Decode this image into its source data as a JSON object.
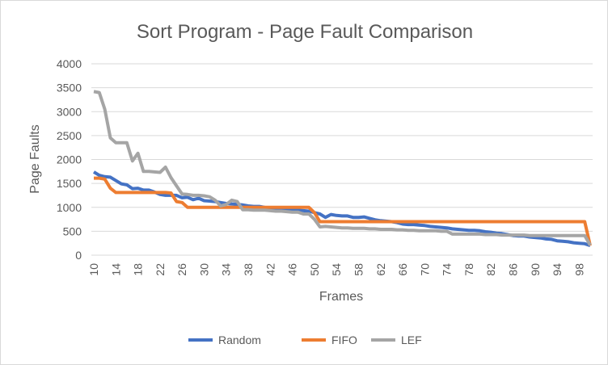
{
  "chart_data": {
    "type": "line",
    "title": "Sort Program - Page Fault Comparison",
    "xlabel": "Frames",
    "ylabel": "Page Faults",
    "xlim": [
      10,
      100
    ],
    "ylim": [
      0,
      4000
    ],
    "y_ticks": [
      0,
      500,
      1000,
      1500,
      2000,
      2500,
      3000,
      3500,
      4000
    ],
    "x_ticks": [
      10,
      14,
      18,
      22,
      26,
      30,
      34,
      38,
      42,
      46,
      50,
      54,
      58,
      62,
      66,
      70,
      74,
      78,
      82,
      86,
      90,
      94,
      98
    ],
    "grid": true,
    "legend": "bottom",
    "series": [
      {
        "name": "Random",
        "color": "#4472c4",
        "points": [
          [
            10,
            1740
          ],
          [
            11,
            1670
          ],
          [
            12,
            1640
          ],
          [
            13,
            1630
          ],
          [
            14,
            1560
          ],
          [
            15,
            1490
          ],
          [
            16,
            1470
          ],
          [
            17,
            1390
          ],
          [
            18,
            1400
          ],
          [
            19,
            1360
          ],
          [
            20,
            1360
          ],
          [
            21,
            1320
          ],
          [
            22,
            1270
          ],
          [
            23,
            1250
          ],
          [
            24,
            1250
          ],
          [
            25,
            1250
          ],
          [
            26,
            1200
          ],
          [
            27,
            1210
          ],
          [
            28,
            1160
          ],
          [
            29,
            1190
          ],
          [
            30,
            1140
          ],
          [
            31,
            1130
          ],
          [
            32,
            1120
          ],
          [
            33,
            1100
          ],
          [
            34,
            1080
          ],
          [
            35,
            1070
          ],
          [
            36,
            1060
          ],
          [
            37,
            1050
          ],
          [
            38,
            1030
          ],
          [
            39,
            1020
          ],
          [
            40,
            1020
          ],
          [
            41,
            1000
          ],
          [
            42,
            970
          ],
          [
            43,
            960
          ],
          [
            44,
            960
          ],
          [
            45,
            950
          ],
          [
            46,
            940
          ],
          [
            47,
            940
          ],
          [
            48,
            930
          ],
          [
            49,
            920
          ],
          [
            50,
            890
          ],
          [
            51,
            860
          ],
          [
            52,
            790
          ],
          [
            53,
            850
          ],
          [
            54,
            830
          ],
          [
            55,
            820
          ],
          [
            56,
            820
          ],
          [
            57,
            790
          ],
          [
            58,
            790
          ],
          [
            59,
            800
          ],
          [
            60,
            770
          ],
          [
            61,
            740
          ],
          [
            62,
            720
          ],
          [
            63,
            710
          ],
          [
            64,
            700
          ],
          [
            65,
            680
          ],
          [
            66,
            650
          ],
          [
            67,
            640
          ],
          [
            68,
            640
          ],
          [
            69,
            630
          ],
          [
            70,
            620
          ],
          [
            71,
            600
          ],
          [
            72,
            590
          ],
          [
            73,
            580
          ],
          [
            74,
            570
          ],
          [
            75,
            550
          ],
          [
            76,
            540
          ],
          [
            77,
            530
          ],
          [
            78,
            520
          ],
          [
            79,
            520
          ],
          [
            80,
            510
          ],
          [
            81,
            490
          ],
          [
            82,
            480
          ],
          [
            83,
            460
          ],
          [
            84,
            450
          ],
          [
            85,
            430
          ],
          [
            86,
            410
          ],
          [
            87,
            400
          ],
          [
            88,
            400
          ],
          [
            89,
            380
          ],
          [
            90,
            370
          ],
          [
            91,
            360
          ],
          [
            92,
            340
          ],
          [
            93,
            330
          ],
          [
            94,
            300
          ],
          [
            95,
            290
          ],
          [
            96,
            280
          ],
          [
            97,
            260
          ],
          [
            98,
            250
          ],
          [
            99,
            240
          ],
          [
            100,
            200
          ]
        ]
      },
      {
        "name": "FIFO",
        "color": "#ed7d31",
        "points": [
          [
            10,
            1610
          ],
          [
            11,
            1610
          ],
          [
            12,
            1590
          ],
          [
            13,
            1400
          ],
          [
            14,
            1310
          ],
          [
            15,
            1310
          ],
          [
            22,
            1310
          ],
          [
            23,
            1310
          ],
          [
            24,
            1300
          ],
          [
            25,
            1120
          ],
          [
            26,
            1100
          ],
          [
            27,
            1000
          ],
          [
            49,
            1000
          ],
          [
            50,
            890
          ],
          [
            51,
            700
          ],
          [
            99,
            700
          ],
          [
            100,
            200
          ]
        ]
      },
      {
        "name": "LEF",
        "color": "#a5a5a5",
        "points": [
          [
            10,
            3420
          ],
          [
            11,
            3400
          ],
          [
            12,
            3050
          ],
          [
            13,
            2450
          ],
          [
            14,
            2350
          ],
          [
            15,
            2350
          ],
          [
            16,
            2350
          ],
          [
            17,
            1970
          ],
          [
            18,
            2130
          ],
          [
            19,
            1750
          ],
          [
            20,
            1750
          ],
          [
            21,
            1740
          ],
          [
            22,
            1730
          ],
          [
            23,
            1840
          ],
          [
            24,
            1620
          ],
          [
            25,
            1450
          ],
          [
            26,
            1280
          ],
          [
            27,
            1270
          ],
          [
            28,
            1250
          ],
          [
            29,
            1250
          ],
          [
            30,
            1240
          ],
          [
            31,
            1220
          ],
          [
            32,
            1150
          ],
          [
            33,
            1030
          ],
          [
            34,
            1060
          ],
          [
            35,
            1150
          ],
          [
            36,
            1120
          ],
          [
            37,
            950
          ],
          [
            38,
            950
          ],
          [
            39,
            940
          ],
          [
            40,
            940
          ],
          [
            41,
            940
          ],
          [
            42,
            930
          ],
          [
            43,
            920
          ],
          [
            44,
            920
          ],
          [
            45,
            910
          ],
          [
            46,
            900
          ],
          [
            47,
            900
          ],
          [
            48,
            860
          ],
          [
            49,
            860
          ],
          [
            50,
            750
          ],
          [
            51,
            590
          ],
          [
            52,
            600
          ],
          [
            53,
            590
          ],
          [
            54,
            580
          ],
          [
            55,
            570
          ],
          [
            56,
            570
          ],
          [
            57,
            560
          ],
          [
            58,
            560
          ],
          [
            59,
            560
          ],
          [
            60,
            550
          ],
          [
            61,
            550
          ],
          [
            62,
            540
          ],
          [
            63,
            540
          ],
          [
            64,
            540
          ],
          [
            65,
            530
          ],
          [
            66,
            530
          ],
          [
            67,
            520
          ],
          [
            68,
            520
          ],
          [
            69,
            510
          ],
          [
            70,
            510
          ],
          [
            71,
            510
          ],
          [
            72,
            510
          ],
          [
            73,
            500
          ],
          [
            74,
            500
          ],
          [
            75,
            440
          ],
          [
            76,
            440
          ],
          [
            77,
            440
          ],
          [
            78,
            440
          ],
          [
            79,
            440
          ],
          [
            80,
            440
          ],
          [
            81,
            430
          ],
          [
            82,
            430
          ],
          [
            83,
            430
          ],
          [
            84,
            420
          ],
          [
            85,
            420
          ],
          [
            86,
            420
          ],
          [
            87,
            420
          ],
          [
            88,
            420
          ],
          [
            89,
            410
          ],
          [
            90,
            410
          ],
          [
            91,
            410
          ],
          [
            92,
            410
          ],
          [
            93,
            410
          ],
          [
            94,
            410
          ],
          [
            95,
            410
          ],
          [
            96,
            410
          ],
          [
            97,
            410
          ],
          [
            98,
            410
          ],
          [
            99,
            410
          ],
          [
            100,
            210
          ]
        ]
      }
    ]
  }
}
